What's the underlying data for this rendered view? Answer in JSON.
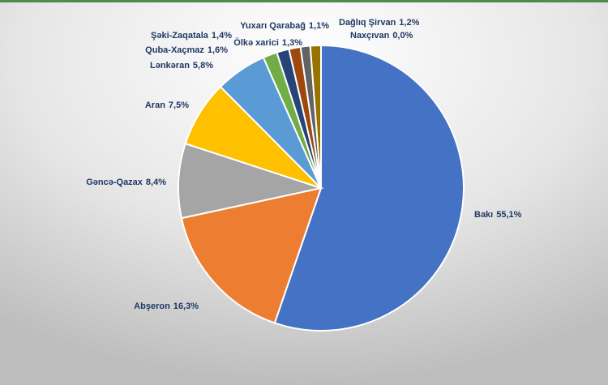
{
  "chart_data": {
    "type": "pie",
    "categories": [
      "Bakı",
      "Abşeron",
      "Gəncə-Qazax",
      "Aran",
      "Lənkəran",
      "Quba-Xaçmaz",
      "Şəki-Zaqatala",
      "Ölkə xarici",
      "Yuxarı Qarabağ",
      "Dağlıq Şirvan",
      "Naxçıvan"
    ],
    "values": [
      55.1,
      16.3,
      8.4,
      7.5,
      5.8,
      1.6,
      1.4,
      1.3,
      1.1,
      1.2,
      0.0
    ],
    "value_labels": [
      "55,1%",
      "16,3%",
      "8,4%",
      "7,5%",
      "5,8%",
      "1,6%",
      "1,4%",
      "1,3%",
      "1,1%",
      "1,2%",
      "0,0%"
    ],
    "colors": [
      "#4472c4",
      "#ed7d31",
      "#a5a5a5",
      "#ffc000",
      "#5b9bd5",
      "#70ad47",
      "#264478",
      "#9e480e",
      "#636363",
      "#997300",
      "#255e91"
    ]
  }
}
